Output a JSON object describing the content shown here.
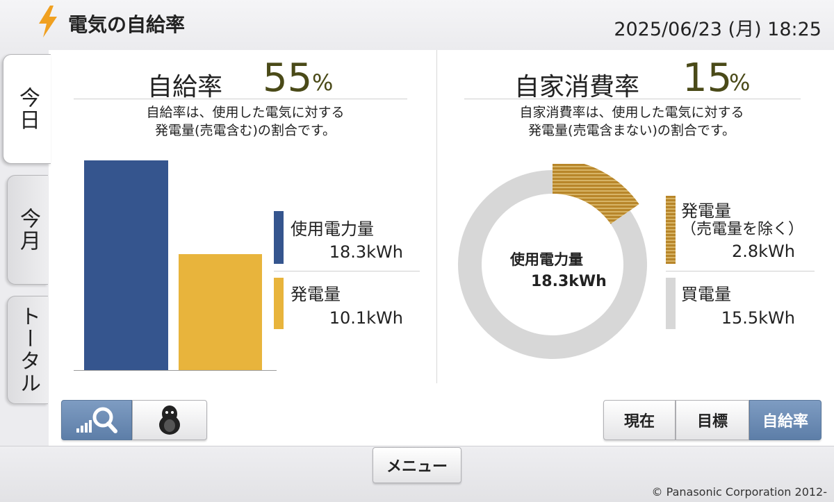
{
  "header": {
    "title": "電気の自給率",
    "datetime": "2025/06/23 (月) 18:25"
  },
  "side_tabs": [
    {
      "label": "今日",
      "active": true
    },
    {
      "label": "今月",
      "active": false
    },
    {
      "label": "トータル",
      "active": false
    }
  ],
  "self_sufficiency": {
    "title": "自給率",
    "value": "55",
    "unit": "%",
    "description_line1": "自給率は、使用した電気に対する",
    "description_line2": "発電量(売電含む)の割合です。",
    "legend": [
      {
        "label": "使用電力量",
        "value": "18.3kWh",
        "color": "#35558e"
      },
      {
        "label": "発電量",
        "value": "10.1kWh",
        "color": "#e8b43c"
      }
    ]
  },
  "self_consumption": {
    "title": "自家消費率",
    "value": "15",
    "unit": "%",
    "description_line1": "自家消費率は、使用した電気に対する",
    "description_line2": "発電量(売電含まない)の割合です。",
    "center_label": "使用電力量",
    "center_value": "18.3kWh",
    "legend": [
      {
        "label_line1": "発電量",
        "label_line2": "（売電量を除く）",
        "value": "2.8kWh",
        "color": "#b8862a"
      },
      {
        "label_line1": "買電量",
        "label_line2": "",
        "value": "15.5kWh",
        "color": "#d7d7d7"
      }
    ]
  },
  "chart_data": [
    {
      "type": "bar",
      "categories": [
        "使用電力量",
        "発電量"
      ],
      "values": [
        18.3,
        10.1
      ],
      "colors": [
        "#35558e",
        "#e8b43c"
      ],
      "unit": "kWh",
      "ylim": [
        0,
        18.3
      ],
      "title": "",
      "xlabel": "",
      "ylabel": ""
    },
    {
      "type": "pie",
      "style": "donut",
      "categories": [
        "発電量（売電量を除く）",
        "買電量"
      ],
      "values": [
        2.8,
        15.5
      ],
      "colors": [
        "#b8862a",
        "#d7d7d7"
      ],
      "unit": "kWh",
      "title": ""
    }
  ],
  "view_buttons": {
    "graph_icon": "graph-search-icon",
    "character_icon": "penguin-icon"
  },
  "mode_buttons": [
    {
      "label": "現在",
      "selected": false
    },
    {
      "label": "目標",
      "selected": false
    },
    {
      "label": "自給率",
      "selected": true
    }
  ],
  "footer": {
    "menu_label": "メニュー",
    "copyright": "© Panasonic Corporation 2012-"
  }
}
